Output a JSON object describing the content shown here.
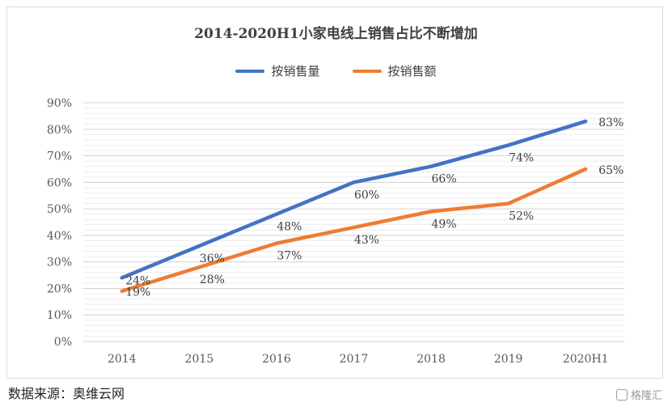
{
  "chart_data": {
    "type": "line",
    "title": "2014-2020H1小家电线上销售占比不断增加",
    "categories": [
      "2014",
      "2015",
      "2016",
      "2017",
      "2018",
      "2019",
      "2020H1"
    ],
    "series": [
      {
        "name": "按销售量",
        "values": [
          24,
          36,
          48,
          60,
          66,
          74,
          83
        ],
        "color": "#4472c4",
        "labels": [
          "24%",
          "36%",
          "48%",
          "60%",
          "66%",
          "74%",
          "83%"
        ]
      },
      {
        "name": "按销售额",
        "values": [
          19,
          28,
          37,
          43,
          49,
          52,
          65
        ],
        "color": "#ed7d31",
        "labels": [
          "19%",
          "28%",
          "37%",
          "43%",
          "49%",
          "52%",
          "65%"
        ]
      }
    ],
    "ylim": [
      0,
      90
    ],
    "yticks": [
      "0%",
      "10%",
      "20%",
      "30%",
      "40%",
      "50%",
      "60%",
      "70%",
      "80%",
      "90%"
    ],
    "grid": true,
    "legend_position": "top"
  },
  "source_text": "数据来源：奥维云网",
  "watermark_text": "格隆汇"
}
